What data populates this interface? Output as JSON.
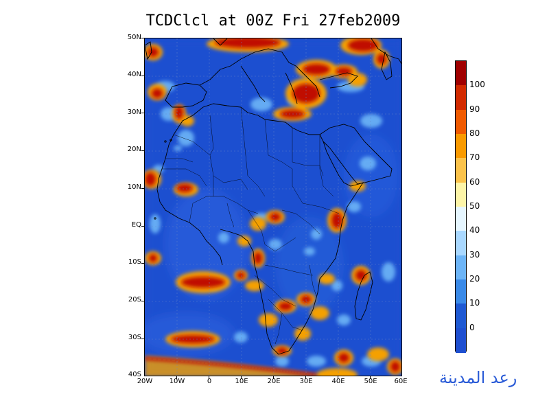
{
  "title": "TCDClcl at 00Z Fri 27feb2009",
  "latitude_labels": [
    "50N",
    "40N",
    "30N",
    "20N",
    "10N",
    "EQ",
    "10S",
    "20S",
    "30S",
    "40S"
  ],
  "longitude_labels": [
    "20W",
    "10W",
    "0",
    "10E",
    "20E",
    "30E",
    "40E",
    "50E",
    "60E"
  ],
  "colorbar": {
    "labels": [
      "100",
      "90",
      "80",
      "70",
      "60",
      "50",
      "40",
      "30",
      "20",
      "10",
      "0"
    ],
    "colors": [
      "#a00000",
      "#d22a00",
      "#f05a00",
      "#f99a00",
      "#fbc34b",
      "#fdf5a8",
      "#e6f6ff",
      "#a9d8ff",
      "#6db5f7",
      "#3a8ae8",
      "#1e59d3",
      "#1e4fd0"
    ]
  },
  "signature_text": "رعد المدينة",
  "colors": {
    "background_cloud": "#1e4fd0",
    "coastline": "#000000"
  }
}
